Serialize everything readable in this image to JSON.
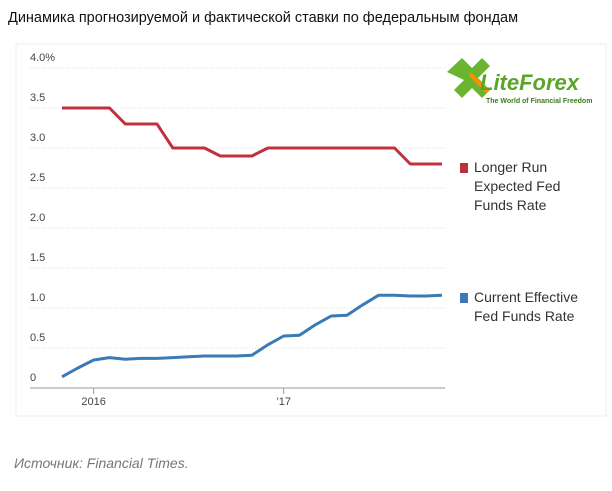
{
  "title": "Динамика прогнозируемой и фактической ставки по федеральным фондам",
  "logo": {
    "name": "LiteForex",
    "tagline": "The World of Financial Freedom"
  },
  "source": "Источник: Financial Times.",
  "chart_data": {
    "type": "line",
    "categories": [
      null,
      null,
      "2016",
      null,
      null,
      null,
      null,
      null,
      null,
      null,
      null,
      null,
      null,
      null,
      "’17",
      null,
      null,
      null,
      null,
      null,
      null,
      null,
      null,
      null,
      null
    ],
    "series": [
      {
        "name": "Longer Run Expected Fed Funds Rate",
        "color": "#c0313b",
        "values": [
          3.5,
          3.5,
          3.5,
          3.5,
          3.3,
          3.3,
          3.3,
          3.0,
          3.0,
          3.0,
          2.9,
          2.9,
          2.9,
          3.0,
          3.0,
          3.0,
          3.0,
          3.0,
          3.0,
          3.0,
          3.0,
          3.0,
          2.8,
          2.8,
          2.8
        ]
      },
      {
        "name": "Current Effective Fed Funds Rate",
        "color": "#3a7ab5",
        "values": [
          0.14,
          0.25,
          0.35,
          0.38,
          0.36,
          0.37,
          0.37,
          0.38,
          0.39,
          0.4,
          0.4,
          0.4,
          0.41,
          0.54,
          0.65,
          0.66,
          0.79,
          0.9,
          0.91,
          1.04,
          1.16,
          1.16,
          1.15,
          1.15,
          1.16
        ]
      }
    ],
    "ylim": [
      0,
      4
    ],
    "yticks": [
      0,
      0.5,
      {
        "value": 1,
        "label": "1.0"
      },
      1.5,
      {
        "value": 2,
        "label": "2.0"
      },
      2.5,
      {
        "value": 3,
        "label": "3.0"
      },
      3.5,
      {
        "value": 4,
        "label": "4.0%"
      }
    ],
    "grid": true
  }
}
